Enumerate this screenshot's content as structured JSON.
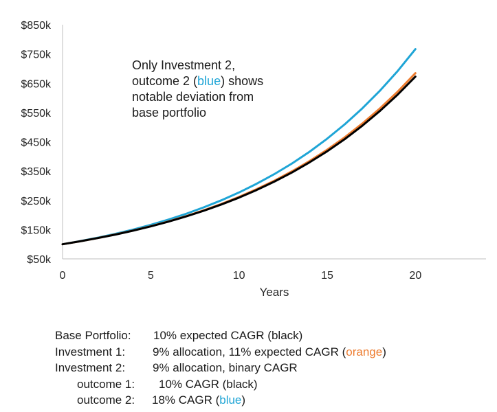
{
  "chart_data": {
    "type": "line",
    "xlabel": "Years",
    "ylabel": "",
    "xlim": [
      0,
      24
    ],
    "ylim": [
      50000,
      850000
    ],
    "x_ticks": [
      0,
      5,
      10,
      15,
      20
    ],
    "y_ticks": [
      50000,
      150000,
      250000,
      350000,
      450000,
      550000,
      650000,
      750000,
      850000
    ],
    "y_tick_labels": [
      "$50k",
      "$150k",
      "$250k",
      "$350k",
      "$450k",
      "$550k",
      "$650k",
      "$750k",
      "$850k"
    ],
    "x": [
      0,
      1,
      2,
      3,
      4,
      5,
      6,
      7,
      8,
      9,
      10,
      11,
      12,
      13,
      14,
      15,
      16,
      17,
      18,
      19,
      20
    ],
    "series": [
      {
        "name": "Investment 2 outcome 2",
        "color": "#1fa5d6",
        "values": [
          100000,
          110720,
          122590,
          135730,
          150280,
          166390,
          184230,
          203980,
          225850,
          250060,
          276870,
          306550,
          339410,
          375800,
          416090,
          460700,
          510080,
          564760,
          625300,
          692330,
          766550
        ]
      },
      {
        "name": "Investment 1",
        "color": "#ed7d31",
        "values": [
          100000,
          110090,
          121210,
          133440,
          146910,
          161740,
          178070,
          196040,
          215830,
          237620,
          261600,
          288010,
          317080,
          349090,
          384330,
          423120,
          465830,
          512850,
          564620,
          621620,
          684370
        ]
      },
      {
        "name": "Base Portfolio",
        "color": "#000000",
        "values": [
          100000,
          110000,
          121000,
          133100,
          146410,
          161050,
          177160,
          194870,
          214360,
          235790,
          259370,
          285310,
          313840,
          345230,
          379750,
          417720,
          459500,
          505450,
          555990,
          611590,
          672750
        ]
      }
    ]
  },
  "annotation": {
    "line1": "Only Investment 2,",
    "line2_pre": "outcome 2 (",
    "line2_blue": "blue",
    "line2_post": ") shows",
    "line3": "notable deviation from",
    "line4": "base portfolio"
  },
  "legend": {
    "row1_label": "Base Portfolio:",
    "row1_text": "10% expected CAGR (black)",
    "row2_label": "Investment 1:",
    "row2_text_pre": "9% allocation, 11% expected CAGR (",
    "row2_orange": "orange",
    "row2_text_post": ")",
    "row3_label": "Investment 2:",
    "row3_text": "9% allocation, binary CAGR",
    "row4_label": "outcome 1:",
    "row4_text": "10% CAGR (black)",
    "row5_label": "outcome 2:",
    "row5_text_pre": "18% CAGR (",
    "row5_blue": "blue",
    "row5_text_post": ")"
  },
  "colors": {
    "blue": "#1fa5d6",
    "orange": "#ed7d31",
    "black": "#000000",
    "axis": "#bfbfbf"
  }
}
